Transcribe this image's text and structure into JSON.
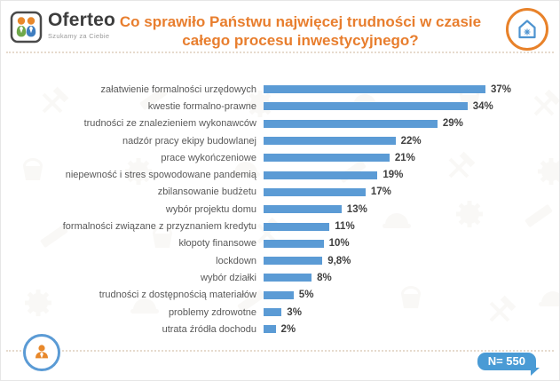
{
  "header": {
    "brand": "Oferteo",
    "tagline": "Szukamy za Ciebie",
    "title_line1": "Co sprawiło Państwu najwięcej trudności w czasie",
    "title_line2": "całego procesu inwestycyjnego?"
  },
  "icons": {
    "logo_icon": "two-people-in-rounded-square",
    "header_icon": "house-with-snowflake-in-orange-circle",
    "footer_icon": "person-in-blue-circle",
    "watermark": "faint-construction-tools-pattern"
  },
  "chart_data": {
    "type": "bar",
    "orientation": "horizontal",
    "title": "Co sprawiło Państwu najwięcej trudności w czasie całego procesu inwestycyjnego?",
    "categories": [
      "załatwienie formalności urzędowych",
      "kwestie formalno-prawne",
      "trudności ze znalezieniem wykonawców",
      "nadzór pracy ekipy budowlanej",
      "prace wykończeniowe",
      "niepewność i stres spowodowane pandemią",
      "zbilansowanie budżetu",
      "wybór projektu domu",
      "formalności związane z przyznaniem kredytu",
      "kłopoty finansowe",
      "lockdown",
      "wybór działki",
      "trudności z dostępnością materiałów",
      "problemy zdrowotne",
      "utrata źródła dochodu"
    ],
    "values": [
      37,
      34,
      29,
      22,
      21,
      19,
      17,
      13,
      11,
      10,
      9.8,
      8,
      5,
      3,
      2
    ],
    "value_labels": [
      "37%",
      "34%",
      "29%",
      "22%",
      "21%",
      "19%",
      "17%",
      "13%",
      "11%",
      "10%",
      "9,8%",
      "8%",
      "5%",
      "3%",
      "2%"
    ],
    "xlim": [
      0,
      40
    ],
    "grid": false,
    "legend": false,
    "bar_color": "#5B9BD5"
  },
  "footer": {
    "sample_badge": "N= 550"
  },
  "colors": {
    "title_orange": "#E87E2E",
    "circle_orange": "#E8822A",
    "bar_blue": "#5B9BD5",
    "badge_blue": "#4A9BD5",
    "label_gray": "#595959",
    "value_dark": "#3F3F3F"
  }
}
